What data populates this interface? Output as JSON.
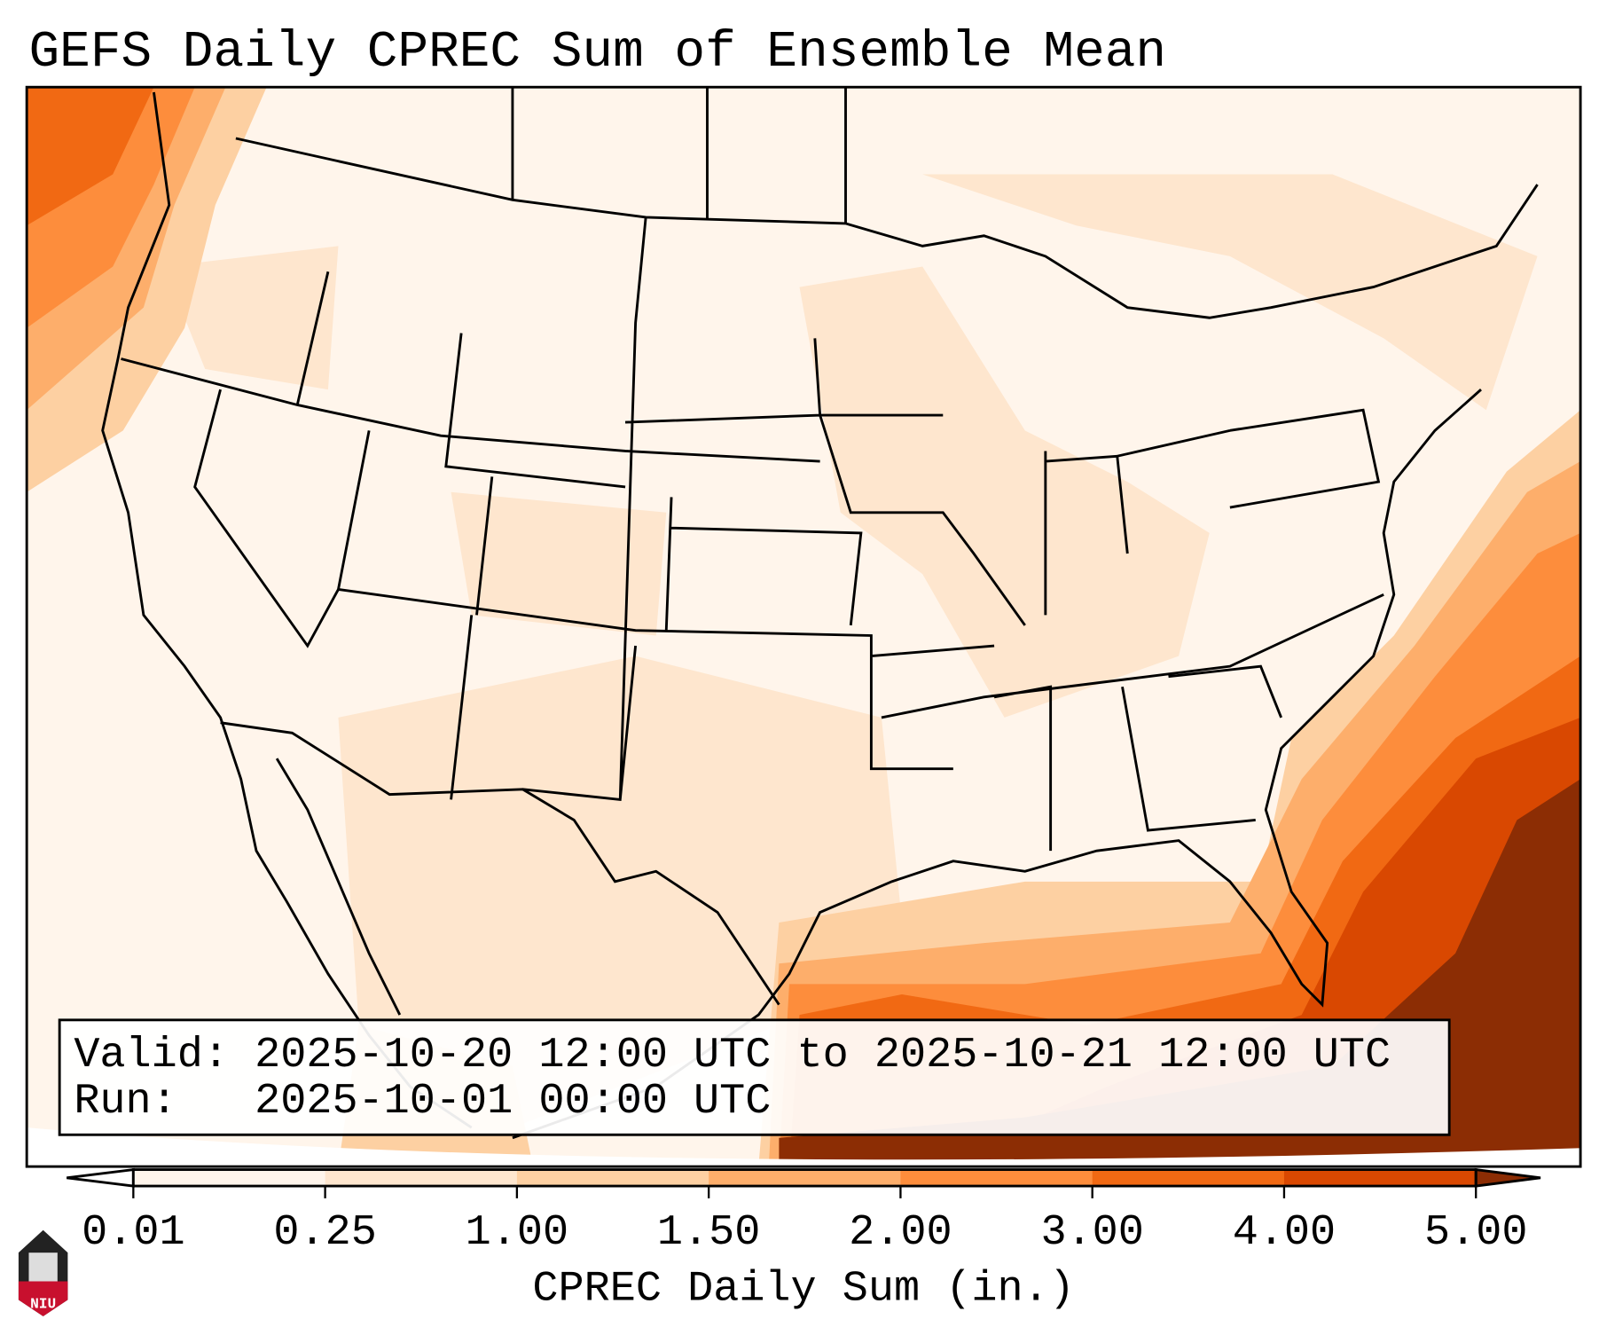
{
  "chart_data": {
    "type": "heatmap",
    "title": "GEFS Daily CPREC Sum of Ensemble Mean",
    "colorbar": {
      "label": "CPREC Daily Sum (in.)",
      "ticks": [
        "0.01",
        "0.25",
        "1.00",
        "1.50",
        "2.00",
        "3.00",
        "4.00",
        "5.00"
      ],
      "levels": [
        0.01,
        0.25,
        1.0,
        1.5,
        2.0,
        3.0,
        4.0,
        5.0
      ],
      "colors": [
        "#fff5eb",
        "#fee6ce",
        "#fdd0a2",
        "#fdae6b",
        "#fd8d3c",
        "#f16913",
        "#d94801"
      ],
      "under_color": "#ffffff",
      "over_color": "#8c2d04",
      "extend": "both"
    },
    "legend_box": {
      "valid_line": "Valid: 2025-10-20 12:00 UTC to 2025-10-21 12:00 UTC",
      "run_line": "Run:   2025-10-01 00:00 UTC"
    },
    "region": "Continental United States",
    "logo_text": "NIU"
  }
}
